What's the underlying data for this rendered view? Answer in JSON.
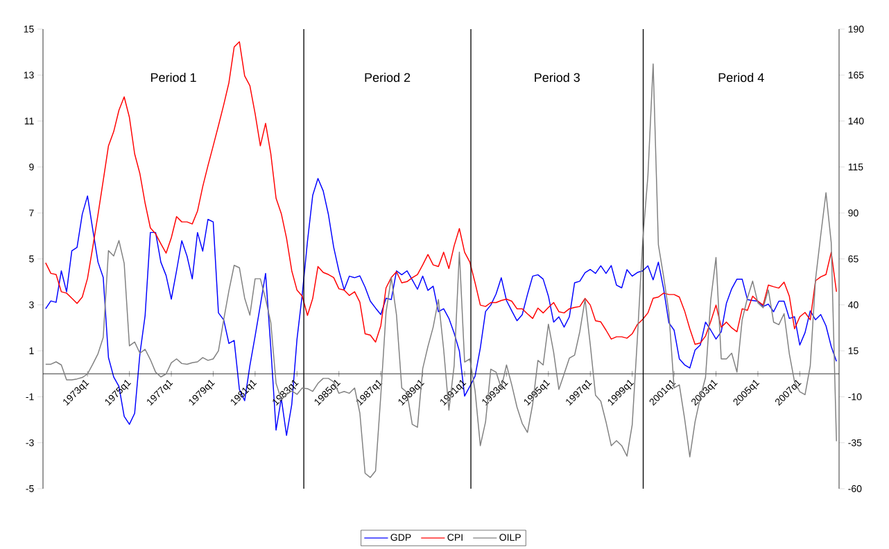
{
  "chart_data": {
    "type": "line",
    "legend": "bottom",
    "categories": [
      null,
      null,
      null,
      null,
      null,
      null,
      null,
      null,
      "1973q1",
      null,
      null,
      null,
      null,
      null,
      null,
      null,
      "1975q1",
      null,
      null,
      null,
      null,
      null,
      null,
      null,
      "1977q1",
      null,
      null,
      null,
      null,
      null,
      null,
      null,
      "1979q1",
      null,
      null,
      null,
      null,
      null,
      null,
      null,
      "1981q1",
      null,
      null,
      null,
      null,
      null,
      null,
      null,
      "1983q1",
      null,
      null,
      null,
      null,
      null,
      null,
      null,
      "1985q1",
      null,
      null,
      null,
      null,
      null,
      null,
      null,
      "1987q1",
      null,
      null,
      null,
      null,
      null,
      null,
      null,
      "1989q1",
      null,
      null,
      null,
      null,
      null,
      null,
      null,
      "1991q1",
      null,
      null,
      null,
      null,
      null,
      null,
      null,
      "1993q1",
      null,
      null,
      null,
      null,
      null,
      null,
      null,
      "1995q1",
      null,
      null,
      null,
      null,
      null,
      null,
      null,
      "1997q1",
      null,
      null,
      null,
      null,
      null,
      null,
      null,
      "1999q1",
      null,
      null,
      null,
      null,
      null,
      null,
      null,
      "2001q1",
      null,
      null,
      null,
      null,
      null,
      null,
      null,
      "2003q1",
      null,
      null,
      null,
      null,
      null,
      null,
      null,
      "2005q1",
      null,
      null,
      null,
      null,
      null,
      null,
      null,
      "2007q1",
      null,
      null,
      null,
      null,
      null,
      null,
      null
    ],
    "ylim": [
      -5,
      15
    ],
    "yticks": [
      -5,
      -3,
      -1,
      1,
      3,
      5,
      7,
      9,
      11,
      13,
      15
    ],
    "y2lim": [
      -60,
      190
    ],
    "y2ticks": [
      -60,
      -35,
      -10,
      15,
      40,
      65,
      90,
      115,
      140,
      165,
      190
    ],
    "series": [
      {
        "name": "GDP",
        "color": "#0000ff",
        "values": [
          2.83,
          3.17,
          3.11,
          4.48,
          3.57,
          5.35,
          5.5,
          6.95,
          7.74,
          6.28,
          4.86,
          4.19,
          0.71,
          -0.14,
          -0.55,
          -1.85,
          -2.2,
          -1.72,
          0.86,
          2.54,
          6.15,
          6.15,
          4.86,
          4.28,
          3.25,
          4.48,
          5.79,
          5.12,
          4.13,
          6.15,
          5.34,
          6.72,
          6.61,
          2.65,
          2.35,
          1.32,
          1.45,
          -0.68,
          -1.17,
          0.35,
          1.64,
          2.99,
          4.37,
          1.12,
          -2.45,
          -1.07,
          -2.68,
          -1.33,
          1.51,
          3.45,
          5.77,
          7.77,
          8.5,
          7.96,
          6.93,
          5.51,
          4.48,
          3.66,
          4.25,
          4.18,
          4.26,
          3.77,
          3.16,
          2.86,
          2.58,
          3.29,
          3.23,
          4.48,
          4.31,
          4.48,
          4.09,
          3.68,
          4.25,
          3.63,
          3.81,
          2.7,
          2.83,
          2.41,
          1.77,
          0.99,
          -0.97,
          -0.55,
          -0.1,
          1.12,
          2.71,
          2.99,
          3.47,
          4.18,
          3.19,
          2.74,
          2.31,
          2.57,
          3.45,
          4.25,
          4.31,
          4.12,
          3.38,
          2.25,
          2.48,
          2.03,
          2.48,
          3.96,
          4.03,
          4.4,
          4.54,
          4.37,
          4.7,
          4.37,
          4.71,
          3.86,
          3.74,
          4.53,
          4.25,
          4.41,
          4.48,
          4.7,
          4.09,
          4.86,
          3.7,
          2.22,
          1.9,
          0.65,
          0.39,
          0.25,
          1.03,
          1.25,
          2.25,
          1.9,
          1.51,
          1.83,
          3.08,
          3.7,
          4.12,
          4.12,
          3.23,
          3.19,
          3.16,
          2.93,
          3.03,
          2.7,
          3.16,
          3.16,
          2.41,
          2.48,
          1.25,
          1.79,
          2.74,
          2.35,
          2.58,
          2.09,
          1.19,
          0.54
        ]
      },
      {
        "name": "CPI",
        "color": "#ff0000",
        "values": [
          4.83,
          4.37,
          4.32,
          3.57,
          3.51,
          3.29,
          3.06,
          3.34,
          4.15,
          5.51,
          6.93,
          8.41,
          9.92,
          10.54,
          11.47,
          12.05,
          11.16,
          9.57,
          8.71,
          7.42,
          6.35,
          6.09,
          5.66,
          5.25,
          5.92,
          6.84,
          6.61,
          6.61,
          6.52,
          7.08,
          8.15,
          9.06,
          9.92,
          10.8,
          11.7,
          12.67,
          14.22,
          14.45,
          12.97,
          12.54,
          11.32,
          9.92,
          10.9,
          9.57,
          7.64,
          6.97,
          5.9,
          4.48,
          3.64,
          3.38,
          2.54,
          3.28,
          4.67,
          4.41,
          4.32,
          4.19,
          3.7,
          3.64,
          3.41,
          3.57,
          3.12,
          1.74,
          1.68,
          1.38,
          2.09,
          3.74,
          4.19,
          4.44,
          3.96,
          4.01,
          4.18,
          4.32,
          4.74,
          5.19,
          4.74,
          4.67,
          5.29,
          4.58,
          5.57,
          6.32,
          5.29,
          4.86,
          3.96,
          2.99,
          2.93,
          3.1,
          3.1,
          3.19,
          3.25,
          3.16,
          2.83,
          2.83,
          2.61,
          2.41,
          2.86,
          2.65,
          2.89,
          3.1,
          2.7,
          2.65,
          2.83,
          2.89,
          2.93,
          3.28,
          2.99,
          2.31,
          2.26,
          1.9,
          1.51,
          1.61,
          1.61,
          1.55,
          1.74,
          2.15,
          2.37,
          2.65,
          3.29,
          3.34,
          3.51,
          3.45,
          3.45,
          3.34,
          2.74,
          1.96,
          1.28,
          1.34,
          1.64,
          2.28,
          2.99,
          2.03,
          2.25,
          2.0,
          1.83,
          2.83,
          2.76,
          3.38,
          3.16,
          2.99,
          3.86,
          3.79,
          3.73,
          3.99,
          3.38,
          1.96,
          2.48,
          2.67,
          2.35,
          4.05,
          4.22,
          4.32,
          5.29,
          3.57
        ]
      },
      {
        "name": "OILP",
        "color": "#808080",
        "axis": "y2",
        "values": [
          7.7,
          7.7,
          9.0,
          7.3,
          -0.8,
          -0.8,
          -0.3,
          0.5,
          2.4,
          7.7,
          13.4,
          22.3,
          69.5,
          66.6,
          75.0,
          62.6,
          17.7,
          19.8,
          13.7,
          15.8,
          10.2,
          3.4,
          0.8,
          2.4,
          8.5,
          10.6,
          8.1,
          7.7,
          8.5,
          9.0,
          11.3,
          9.8,
          10.6,
          15.0,
          31.9,
          47.7,
          61.5,
          60.2,
          43.7,
          34.4,
          54.2,
          54.2,
          43.2,
          30.3,
          -2.7,
          -11.6,
          -8.7,
          -6.8,
          -8.7,
          -5.2,
          -5.6,
          -7.1,
          -2.7,
          0,
          0,
          -1.9,
          -8.1,
          -7.1,
          -8.1,
          -5.2,
          -18.9,
          -51.6,
          -53.9,
          -50.3,
          -9.2,
          36.0,
          54.8,
          34.4,
          -5.2,
          -7.6,
          -25.0,
          -26.6,
          5.3,
          17.4,
          27.9,
          42.9,
          15.8,
          -17.3,
          6.9,
          68.7,
          8.9,
          10.6,
          -6.8,
          -36.6,
          -23.7,
          5.0,
          3.4,
          -5.2,
          7.3,
          -3.5,
          -15.6,
          -24.5,
          -29.4,
          -14.0,
          9.8,
          7.3,
          29.5,
          14.2,
          -6.0,
          2.4,
          11.0,
          12.6,
          25.5,
          43.0,
          18.2,
          -9.2,
          -12.4,
          -23.7,
          -36.6,
          -33.9,
          -36.6,
          -42.3,
          -25.3,
          22.3,
          74.7,
          110.2,
          171.1,
          72.7,
          55.3,
          36.0,
          -5.2,
          -3.5,
          -21.8,
          -42.7,
          -23.7,
          -10.5,
          0.5,
          42.7,
          65.8,
          10.6,
          10.6,
          13.7,
          3.4,
          31.9,
          43.7,
          52.9,
          41.1,
          38.4,
          48.1,
          30.6,
          29.2,
          35.2,
          13.4,
          -1.9,
          -7.3,
          -8.9,
          6.9,
          53.7,
          77.9,
          101.0,
          73.9,
          -34.2
        ]
      }
    ],
    "annotations": [
      "Period 1",
      "Period 2",
      "Period 3",
      "Period 4"
    ]
  }
}
